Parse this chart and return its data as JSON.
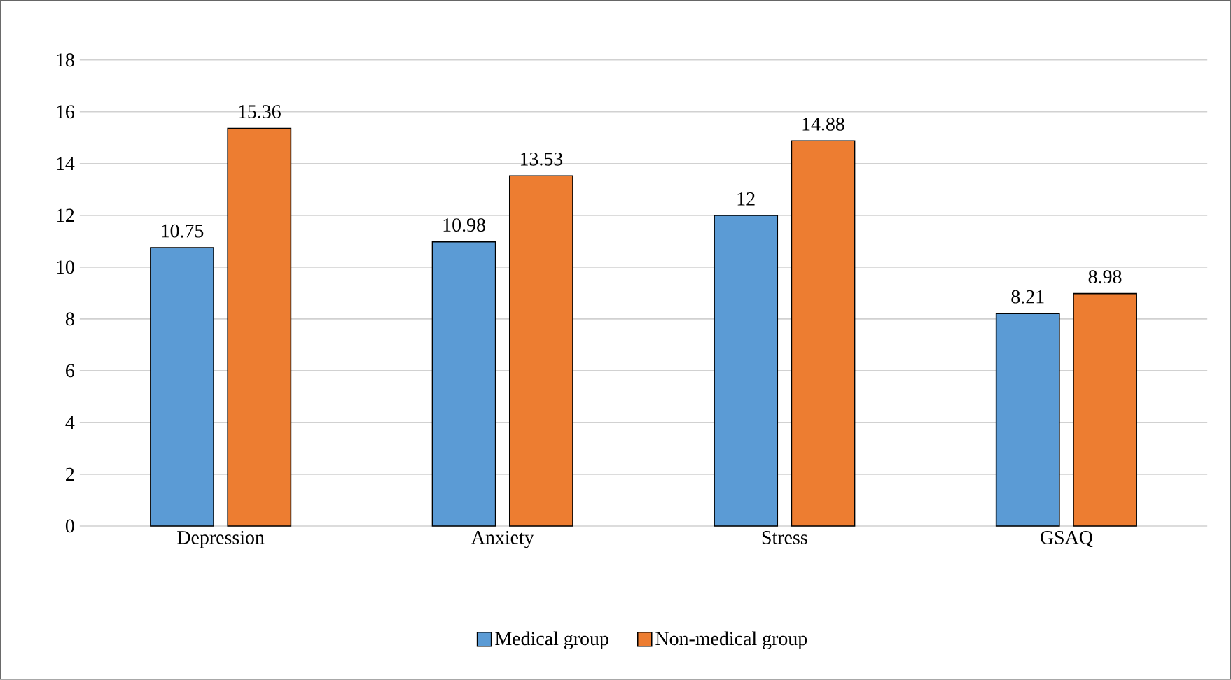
{
  "chart_data": {
    "type": "bar",
    "categories": [
      "Depression",
      "Anxiety",
      "Stress",
      "GSAQ"
    ],
    "series": [
      {
        "name": "Medical group",
        "color": "#5b9bd5",
        "values": [
          10.75,
          10.98,
          12,
          8.21
        ]
      },
      {
        "name": "Non-medical group",
        "color": "#ed7d31",
        "values": [
          15.36,
          13.53,
          14.88,
          8.98
        ]
      }
    ],
    "ylim": [
      0,
      18
    ],
    "yticks": [
      0,
      2,
      4,
      6,
      8,
      10,
      12,
      14,
      16,
      18
    ],
    "grid": "y",
    "legend": "bottom",
    "data_labels": true
  }
}
